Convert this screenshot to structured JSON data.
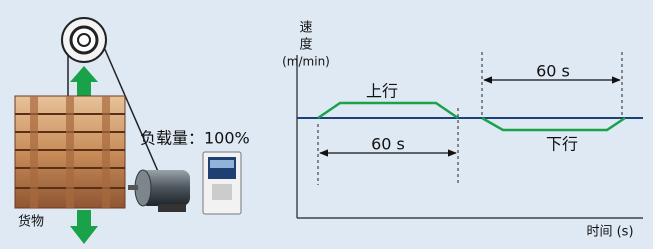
{
  "axis": {
    "y_label_lines": [
      "速",
      "度",
      "(m/min)"
    ],
    "x_label": "时间 (s)"
  },
  "profile": {
    "up_label": "上行",
    "down_label": "下行",
    "up_duration": "60 s",
    "down_duration": "60 s"
  },
  "load": {
    "label": "负载量：100%",
    "cargo": "货物"
  }
}
